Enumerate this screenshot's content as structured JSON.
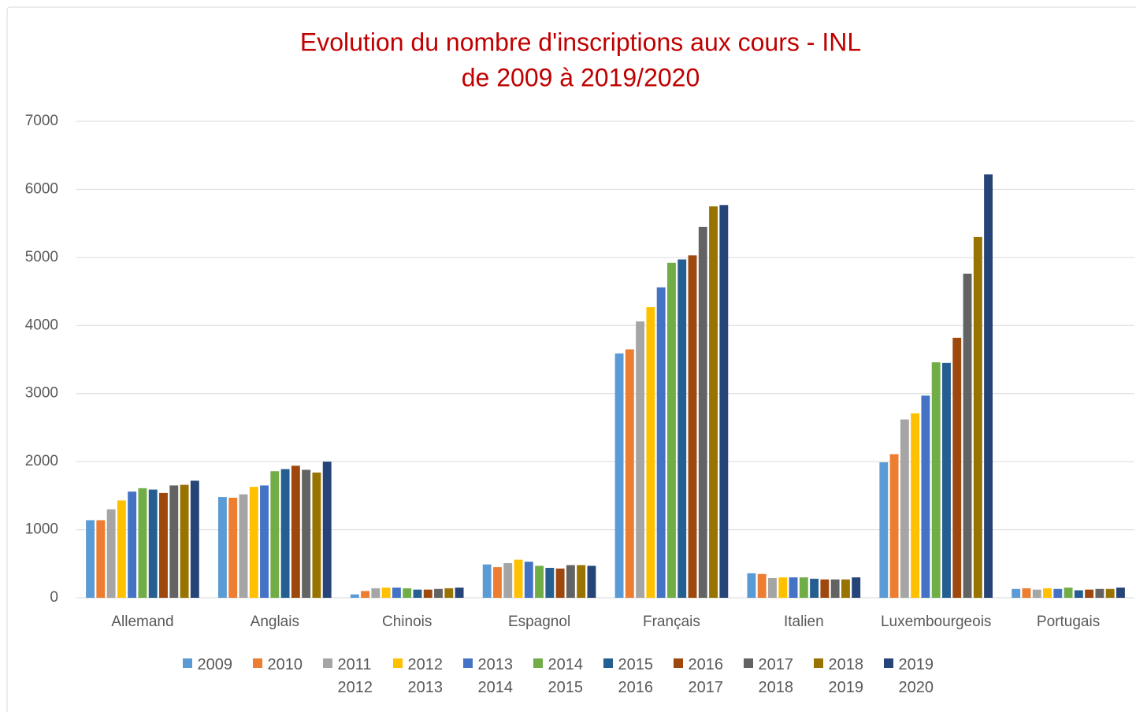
{
  "chart_data": {
    "type": "bar",
    "title": "Evolution du nombre d'inscriptions aux cours - INL",
    "subtitle": "de 2009 à 2019/2020",
    "title_color": "#c00000",
    "categories": [
      "Allemand",
      "Anglais",
      "Chinois",
      "Espagnol",
      "Français",
      "Italien",
      "Luxembourgeois",
      "Portugais"
    ],
    "series": [
      {
        "name": "2009",
        "color": "#5b9bd5",
        "values": [
          1140,
          1480,
          50,
          490,
          3590,
          360,
          1990,
          130
        ]
      },
      {
        "name": "2010",
        "color": "#ed7d31",
        "values": [
          1140,
          1470,
          100,
          450,
          3650,
          350,
          2110,
          140
        ]
      },
      {
        "name": "2011 2012",
        "color": "#a5a5a5",
        "values": [
          1300,
          1520,
          140,
          510,
          4060,
          290,
          2620,
          120
        ]
      },
      {
        "name": "2012 2013",
        "color": "#ffc000",
        "values": [
          1430,
          1630,
          150,
          560,
          4270,
          300,
          2710,
          140
        ]
      },
      {
        "name": "2013 2014",
        "color": "#4472c4",
        "values": [
          1560,
          1650,
          150,
          530,
          4560,
          300,
          2970,
          130
        ]
      },
      {
        "name": "2014 2015",
        "color": "#70ad47",
        "values": [
          1610,
          1860,
          140,
          470,
          4920,
          300,
          3460,
          150
        ]
      },
      {
        "name": "2015 2016",
        "color": "#255e91",
        "values": [
          1590,
          1890,
          120,
          440,
          4970,
          280,
          3450,
          110
        ]
      },
      {
        "name": "2016 2017",
        "color": "#9e480e",
        "values": [
          1540,
          1940,
          120,
          430,
          5030,
          270,
          3820,
          120
        ]
      },
      {
        "name": "2017 2018",
        "color": "#636363",
        "values": [
          1650,
          1880,
          130,
          480,
          5450,
          270,
          4760,
          130
        ]
      },
      {
        "name": "2018 2019",
        "color": "#997300",
        "values": [
          1660,
          1840,
          140,
          480,
          5750,
          270,
          5300,
          130
        ]
      },
      {
        "name": "2019 2020",
        "color": "#264478",
        "values": [
          1720,
          2000,
          150,
          470,
          5770,
          300,
          6220,
          150
        ]
      }
    ],
    "ylim": [
      0,
      7000
    ],
    "yticks": [
      0,
      1000,
      2000,
      3000,
      4000,
      5000,
      6000,
      7000
    ],
    "grid": true,
    "legend": "bottom"
  }
}
